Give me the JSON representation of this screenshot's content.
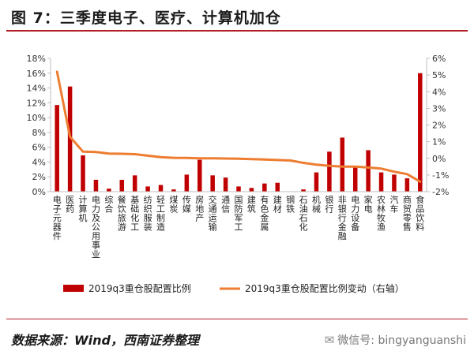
{
  "header": {
    "title": "图 7：三季度电子、医疗、计算机加仓"
  },
  "footer": {
    "source": "数据来源：Wind，西南证券整理",
    "wechat_label": "微信号: bingyanguanshi",
    "wechat_icon": "wechat-icon"
  },
  "chart_data": {
    "type": "bar",
    "categories": [
      "电子元器件",
      "医药",
      "计算机",
      "电力及公用事业",
      "综合",
      "餐饮旅游",
      "基础化工",
      "纺织服装",
      "轻工制造",
      "煤炭",
      "传媒",
      "房地产",
      "交通运输",
      "通信",
      "国防军工",
      "建筑",
      "有色金属",
      "建材",
      "钢铁",
      "石油石化",
      "机械",
      "银行",
      "非银行金融",
      "电力设备",
      "家电",
      "农林牧渔",
      "汽车",
      "商贸零售",
      "食品饮料"
    ],
    "series": [
      {
        "name": "2019q3重仓股配置比例",
        "type": "bar",
        "axis": "left",
        "color": "#c00000",
        "values": [
          11.7,
          14.2,
          4.9,
          1.6,
          0.4,
          1.6,
          2.2,
          0.7,
          0.9,
          0.3,
          2.3,
          4.3,
          2.2,
          1.9,
          0.7,
          0.5,
          1.1,
          1.2,
          0.0,
          0.3,
          2.6,
          5.4,
          7.3,
          3.3,
          5.6,
          2.6,
          2.3,
          1.8,
          16.0
        ]
      },
      {
        "name": "2019q3重仓股配置比例变动（右轴）",
        "type": "line",
        "axis": "right",
        "color": "#ed7d31",
        "values": [
          5.2,
          1.3,
          0.4,
          0.38,
          0.28,
          0.27,
          0.25,
          0.16,
          0.07,
          0.03,
          0.02,
          0.0,
          0.0,
          -0.01,
          -0.02,
          -0.05,
          -0.07,
          -0.1,
          -0.13,
          -0.27,
          -0.38,
          -0.45,
          -0.5,
          -0.5,
          -0.55,
          -0.62,
          -0.8,
          -0.95,
          -1.4
        ]
      }
    ],
    "y_left": {
      "ticks": [
        "0%",
        "2%",
        "4%",
        "6%",
        "8%",
        "10%",
        "12%",
        "14%",
        "16%",
        "18%"
      ],
      "range": [
        0,
        18
      ]
    },
    "y_right": {
      "ticks": [
        "-2%",
        "-1%",
        "0%",
        "1%",
        "2%",
        "3%",
        "4%",
        "5%",
        "6%"
      ],
      "range": [
        -2,
        6
      ]
    },
    "grid": false,
    "legend_position": "bottom"
  }
}
